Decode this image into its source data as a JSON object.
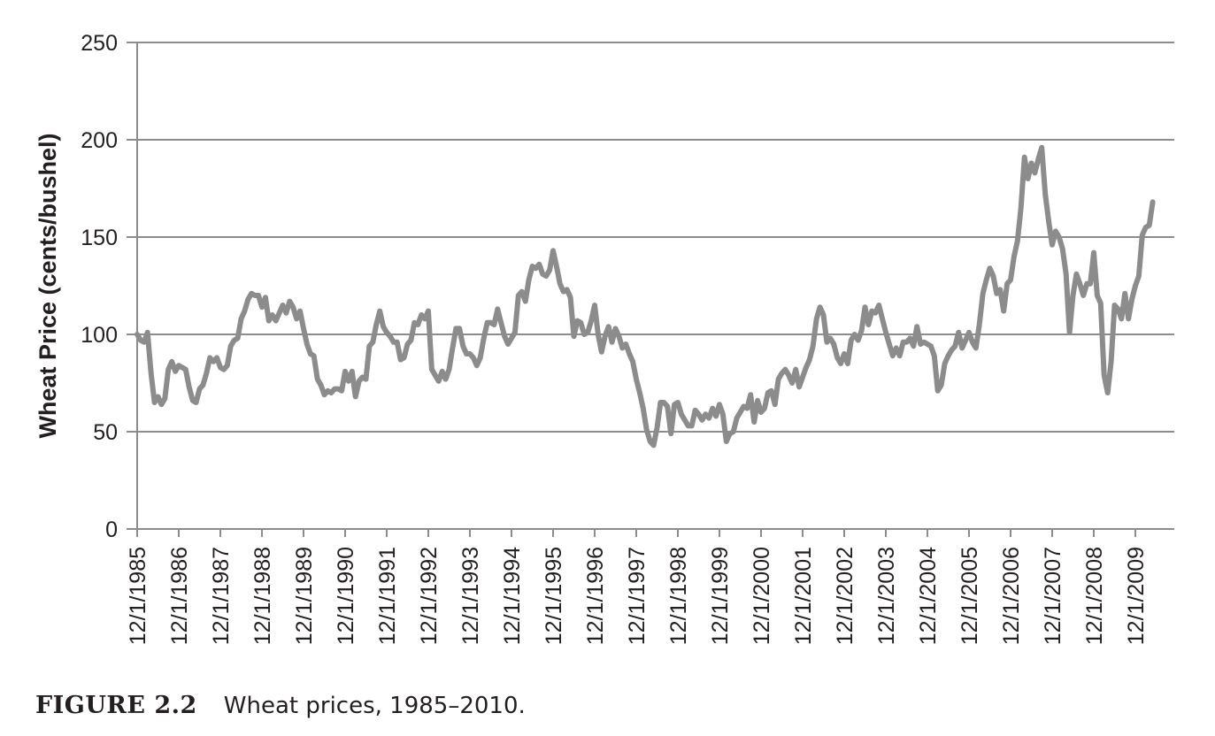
{
  "chart_data": {
    "type": "line",
    "title": "",
    "xlabel": "",
    "ylabel": "Wheat Price (cents/bushel)",
    "ylim": [
      0,
      250
    ],
    "yticks": [
      0,
      50,
      100,
      150,
      200,
      250
    ],
    "xticks": [
      "12/1/1985",
      "12/1/1986",
      "12/1/1987",
      "12/1/1988",
      "12/1/1989",
      "12/1/1990",
      "12/1/1991",
      "12/1/1992",
      "12/1/1993",
      "12/1/1994",
      "12/1/1995",
      "12/1/1996",
      "12/1/1997",
      "12/1/1998",
      "12/1/1999",
      "12/1/2000",
      "12/1/2001",
      "12/1/2002",
      "12/1/2003",
      "12/1/2004",
      "12/1/2005",
      "12/1/2006",
      "12/1/2007",
      "12/1/2008",
      "12/1/2009"
    ],
    "grid": "horizontal",
    "line_color": "#8c8c8c",
    "grid_color": "#8c8c8c",
    "series": [
      {
        "points": [
          [
            "12/1/1985",
            100
          ],
          [
            "1/1/1986",
            97
          ],
          [
            "2/1/1986",
            96
          ],
          [
            "3/1/1986",
            101
          ],
          [
            "4/1/1986",
            80
          ],
          [
            "5/1/1986",
            65
          ],
          [
            "6/1/1986",
            68
          ],
          [
            "7/1/1986",
            64
          ],
          [
            "8/1/1986",
            67
          ],
          [
            "9/1/1986",
            82
          ],
          [
            "10/1/1986",
            86
          ],
          [
            "11/1/1986",
            81
          ],
          [
            "12/1/1986",
            84
          ],
          [
            "1/1/1987",
            83
          ],
          [
            "2/1/1987",
            82
          ],
          [
            "3/1/1987",
            73
          ],
          [
            "4/1/1987",
            66
          ],
          [
            "5/1/1987",
            65
          ],
          [
            "6/1/1987",
            72
          ],
          [
            "7/1/1987",
            74
          ],
          [
            "8/1/1987",
            80
          ],
          [
            "9/1/1987",
            88
          ],
          [
            "10/1/1987",
            86
          ],
          [
            "11/1/1987",
            88
          ],
          [
            "12/1/1987",
            83
          ],
          [
            "1/1/1988",
            82
          ],
          [
            "2/1/1988",
            84
          ],
          [
            "3/1/1988",
            94
          ],
          [
            "4/1/1988",
            97
          ],
          [
            "5/1/1988",
            98
          ],
          [
            "6/1/1988",
            108
          ],
          [
            "7/1/1988",
            112
          ],
          [
            "8/1/1988",
            118
          ],
          [
            "9/1/1988",
            121
          ],
          [
            "10/1/1988",
            120
          ],
          [
            "11/1/1988",
            120
          ],
          [
            "12/1/1988",
            114
          ],
          [
            "1/1/1989",
            119
          ],
          [
            "2/1/1989",
            107
          ],
          [
            "3/1/1989",
            110
          ],
          [
            "4/1/1989",
            107
          ],
          [
            "5/1/1989",
            111
          ],
          [
            "6/1/1989",
            115
          ],
          [
            "7/1/1989",
            111
          ],
          [
            "8/1/1989",
            117
          ],
          [
            "9/1/1989",
            114
          ],
          [
            "10/1/1989",
            108
          ],
          [
            "11/1/1989",
            112
          ],
          [
            "12/1/1989",
            103
          ],
          [
            "1/1/1990",
            95
          ],
          [
            "2/1/1990",
            90
          ],
          [
            "3/1/1990",
            89
          ],
          [
            "4/1/1990",
            77
          ],
          [
            "5/1/1990",
            74
          ],
          [
            "6/1/1990",
            69
          ],
          [
            "7/1/1990",
            71
          ],
          [
            "8/1/1990",
            70
          ],
          [
            "9/1/1990",
            72
          ],
          [
            "10/1/1990",
            72
          ],
          [
            "11/1/1990",
            71
          ],
          [
            "12/1/1990",
            81
          ],
          [
            "1/1/1991",
            76
          ],
          [
            "2/1/1991",
            81
          ],
          [
            "3/1/1991",
            68
          ],
          [
            "4/1/1991",
            76
          ],
          [
            "5/1/1991",
            78
          ],
          [
            "6/1/1991",
            77
          ],
          [
            "7/1/1991",
            94
          ],
          [
            "8/1/1991",
            96
          ],
          [
            "9/1/1991",
            105
          ],
          [
            "10/1/1991",
            112
          ],
          [
            "11/1/1991",
            104
          ],
          [
            "12/1/1991",
            101
          ],
          [
            "1/1/1992",
            99
          ],
          [
            "2/1/1992",
            96
          ],
          [
            "3/1/1992",
            96
          ],
          [
            "4/1/1992",
            87
          ],
          [
            "5/1/1992",
            88
          ],
          [
            "6/1/1992",
            95
          ],
          [
            "7/1/1992",
            97
          ],
          [
            "8/1/1992",
            106
          ],
          [
            "9/1/1992",
            105
          ],
          [
            "10/1/1992",
            110
          ],
          [
            "11/1/1992",
            108
          ],
          [
            "12/1/1992",
            112
          ],
          [
            "1/1/1993",
            82
          ],
          [
            "2/1/1993",
            79
          ],
          [
            "3/1/1993",
            76
          ],
          [
            "4/1/1993",
            81
          ],
          [
            "5/1/1993",
            77
          ],
          [
            "6/1/1993",
            82
          ],
          [
            "7/1/1993",
            93
          ],
          [
            "8/1/1993",
            103
          ],
          [
            "9/1/1993",
            103
          ],
          [
            "10/1/1993",
            94
          ],
          [
            "11/1/1993",
            90
          ],
          [
            "12/1/1993",
            90
          ],
          [
            "1/1/1994",
            88
          ],
          [
            "2/1/1994",
            84
          ],
          [
            "3/1/1994",
            88
          ],
          [
            "4/1/1994",
            98
          ],
          [
            "5/1/1994",
            106
          ],
          [
            "6/1/1994",
            106
          ],
          [
            "7/1/1994",
            105
          ],
          [
            "8/1/1994",
            113
          ],
          [
            "9/1/1994",
            106
          ],
          [
            "10/1/1994",
            99
          ],
          [
            "11/1/1994",
            95
          ],
          [
            "12/1/1994",
            98
          ],
          [
            "1/1/1995",
            101
          ],
          [
            "2/1/1995",
            120
          ],
          [
            "3/1/1995",
            122
          ],
          [
            "4/1/1995",
            117
          ],
          [
            "5/1/1995",
            128
          ],
          [
            "6/1/1995",
            135
          ],
          [
            "7/1/1995",
            134
          ],
          [
            "8/1/1995",
            136
          ],
          [
            "9/1/1995",
            131
          ],
          [
            "10/1/1995",
            130
          ],
          [
            "11/1/1995",
            133
          ],
          [
            "12/1/1995",
            143
          ],
          [
            "1/1/1996",
            135
          ],
          [
            "2/1/1996",
            126
          ],
          [
            "3/1/1996",
            122
          ],
          [
            "4/1/1996",
            123
          ],
          [
            "5/1/1996",
            119
          ],
          [
            "6/1/1996",
            99
          ],
          [
            "7/1/1996",
            107
          ],
          [
            "8/1/1996",
            106
          ],
          [
            "9/1/1996",
            100
          ],
          [
            "10/1/1996",
            101
          ],
          [
            "11/1/1996",
            107
          ],
          [
            "12/1/1996",
            115
          ],
          [
            "1/1/1997",
            100
          ],
          [
            "2/1/1997",
            91
          ],
          [
            "3/1/1997",
            99
          ],
          [
            "4/1/1997",
            104
          ],
          [
            "5/1/1997",
            96
          ],
          [
            "6/1/1997",
            103
          ],
          [
            "7/1/1997",
            99
          ],
          [
            "8/1/1997",
            93
          ],
          [
            "9/1/1997",
            95
          ],
          [
            "10/1/1997",
            90
          ],
          [
            "11/1/1997",
            86
          ],
          [
            "12/1/1997",
            77
          ],
          [
            "1/1/1998",
            70
          ],
          [
            "2/1/1998",
            62
          ],
          [
            "3/1/1998",
            51
          ],
          [
            "4/1/1998",
            45
          ],
          [
            "5/1/1998",
            43
          ],
          [
            "6/1/1998",
            52
          ],
          [
            "7/1/1998",
            65
          ],
          [
            "8/1/1998",
            65
          ],
          [
            "9/1/1998",
            63
          ],
          [
            "10/1/1998",
            49
          ],
          [
            "11/1/1998",
            64
          ],
          [
            "12/1/1998",
            65
          ],
          [
            "1/1/1999",
            59
          ],
          [
            "2/1/1999",
            56
          ],
          [
            "3/1/1999",
            53
          ],
          [
            "4/1/1999",
            53
          ],
          [
            "5/1/1999",
            61
          ],
          [
            "6/1/1999",
            59
          ],
          [
            "7/1/1999",
            56
          ],
          [
            "8/1/1999",
            59
          ],
          [
            "9/1/1999",
            57
          ],
          [
            "10/1/1999",
            62
          ],
          [
            "11/1/1999",
            58
          ],
          [
            "12/1/1999",
            64
          ],
          [
            "1/1/2000",
            59
          ],
          [
            "2/1/2000",
            45
          ],
          [
            "3/1/2000",
            49
          ],
          [
            "4/1/2000",
            50
          ],
          [
            "5/1/2000",
            57
          ],
          [
            "6/1/2000",
            60
          ],
          [
            "7/1/2000",
            63
          ],
          [
            "8/1/2000",
            62
          ],
          [
            "9/1/2000",
            69
          ],
          [
            "10/1/2000",
            55
          ],
          [
            "11/1/2000",
            66
          ],
          [
            "12/1/2000",
            60
          ],
          [
            "1/1/2001",
            62
          ],
          [
            "2/1/2001",
            70
          ],
          [
            "3/1/2001",
            71
          ],
          [
            "4/1/2001",
            64
          ],
          [
            "5/1/2001",
            77
          ],
          [
            "6/1/2001",
            80
          ],
          [
            "7/1/2001",
            82
          ],
          [
            "8/1/2001",
            79
          ],
          [
            "9/1/2001",
            75
          ],
          [
            "10/1/2001",
            82
          ],
          [
            "11/1/2001",
            73
          ],
          [
            "12/1/2001",
            78
          ],
          [
            "1/1/2002",
            83
          ],
          [
            "2/1/2002",
            87
          ],
          [
            "3/1/2002",
            94
          ],
          [
            "4/1/2002",
            108
          ],
          [
            "5/1/2002",
            114
          ],
          [
            "6/1/2002",
            110
          ],
          [
            "7/1/2002",
            96
          ],
          [
            "8/1/2002",
            98
          ],
          [
            "9/1/2002",
            95
          ],
          [
            "10/1/2002",
            88
          ],
          [
            "11/1/2002",
            85
          ],
          [
            "12/1/2002",
            90
          ],
          [
            "1/1/2003",
            85
          ],
          [
            "2/1/2003",
            97
          ],
          [
            "3/1/2003",
            100
          ],
          [
            "4/1/2003",
            97
          ],
          [
            "5/1/2003",
            102
          ],
          [
            "6/1/2003",
            114
          ],
          [
            "7/1/2003",
            105
          ],
          [
            "8/1/2003",
            112
          ],
          [
            "9/1/2003",
            111
          ],
          [
            "10/1/2003",
            115
          ],
          [
            "11/1/2003",
            108
          ],
          [
            "12/1/2003",
            101
          ],
          [
            "1/1/2004",
            95
          ],
          [
            "2/1/2004",
            89
          ],
          [
            "3/1/2004",
            93
          ],
          [
            "4/1/2004",
            89
          ],
          [
            "5/1/2004",
            96
          ],
          [
            "6/1/2004",
            96
          ],
          [
            "7/1/2004",
            98
          ],
          [
            "8/1/2004",
            94
          ],
          [
            "9/1/2004",
            104
          ],
          [
            "10/1/2004",
            95
          ],
          [
            "11/1/2004",
            96
          ],
          [
            "12/1/2004",
            95
          ],
          [
            "1/1/2005",
            94
          ],
          [
            "2/1/2005",
            89
          ],
          [
            "3/1/2005",
            71
          ],
          [
            "4/1/2005",
            74
          ],
          [
            "5/1/2005",
            85
          ],
          [
            "6/1/2005",
            89
          ],
          [
            "7/1/2005",
            92
          ],
          [
            "8/1/2005",
            94
          ],
          [
            "9/1/2005",
            101
          ],
          [
            "10/1/2005",
            93
          ],
          [
            "11/1/2005",
            97
          ],
          [
            "12/1/2005",
            101
          ],
          [
            "1/1/2006",
            96
          ],
          [
            "2/1/2006",
            93
          ],
          [
            "3/1/2006",
            105
          ],
          [
            "4/1/2006",
            121
          ],
          [
            "5/1/2006",
            128
          ],
          [
            "6/1/2006",
            134
          ],
          [
            "7/1/2006",
            130
          ],
          [
            "8/1/2006",
            121
          ],
          [
            "9/1/2006",
            123
          ],
          [
            "10/1/2006",
            112
          ],
          [
            "11/1/2006",
            126
          ],
          [
            "12/1/2006",
            128
          ],
          [
            "1/1/2007",
            140
          ],
          [
            "2/1/2007",
            148
          ],
          [
            "3/1/2007",
            165
          ],
          [
            "4/1/2007",
            191
          ],
          [
            "5/1/2007",
            180
          ],
          [
            "6/1/2007",
            188
          ],
          [
            "7/1/2007",
            183
          ],
          [
            "8/1/2007",
            190
          ],
          [
            "9/1/2007",
            196
          ],
          [
            "10/1/2007",
            172
          ],
          [
            "11/1/2007",
            158
          ],
          [
            "12/1/2007",
            146
          ],
          [
            "1/1/2008",
            153
          ],
          [
            "2/1/2008",
            150
          ],
          [
            "3/1/2008",
            144
          ],
          [
            "4/1/2008",
            131
          ],
          [
            "5/1/2008",
            101
          ],
          [
            "6/1/2008",
            120
          ],
          [
            "7/1/2008",
            131
          ],
          [
            "8/1/2008",
            126
          ],
          [
            "9/1/2008",
            120
          ],
          [
            "10/1/2008",
            126
          ],
          [
            "11/1/2008",
            126
          ],
          [
            "12/1/2008",
            142
          ],
          [
            "1/1/2009",
            120
          ],
          [
            "2/1/2009",
            116
          ],
          [
            "3/1/2009",
            79
          ],
          [
            "4/1/2009",
            70
          ],
          [
            "5/1/2009",
            86
          ],
          [
            "6/1/2009",
            115
          ],
          [
            "7/1/2009",
            113
          ],
          [
            "8/1/2009",
            108
          ],
          [
            "9/1/2009",
            121
          ],
          [
            "10/1/2009",
            108
          ],
          [
            "11/1/2009",
            118
          ],
          [
            "12/1/2009",
            125
          ],
          [
            "1/1/2010",
            130
          ],
          [
            "2/1/2010",
            151
          ],
          [
            "3/1/2010",
            155
          ],
          [
            "4/1/2010",
            156
          ],
          [
            "5/1/2010",
            168
          ]
        ]
      }
    ]
  },
  "caption": {
    "label": "FIGURE 2.2",
    "text": "Wheat prices, 1985–2010."
  }
}
